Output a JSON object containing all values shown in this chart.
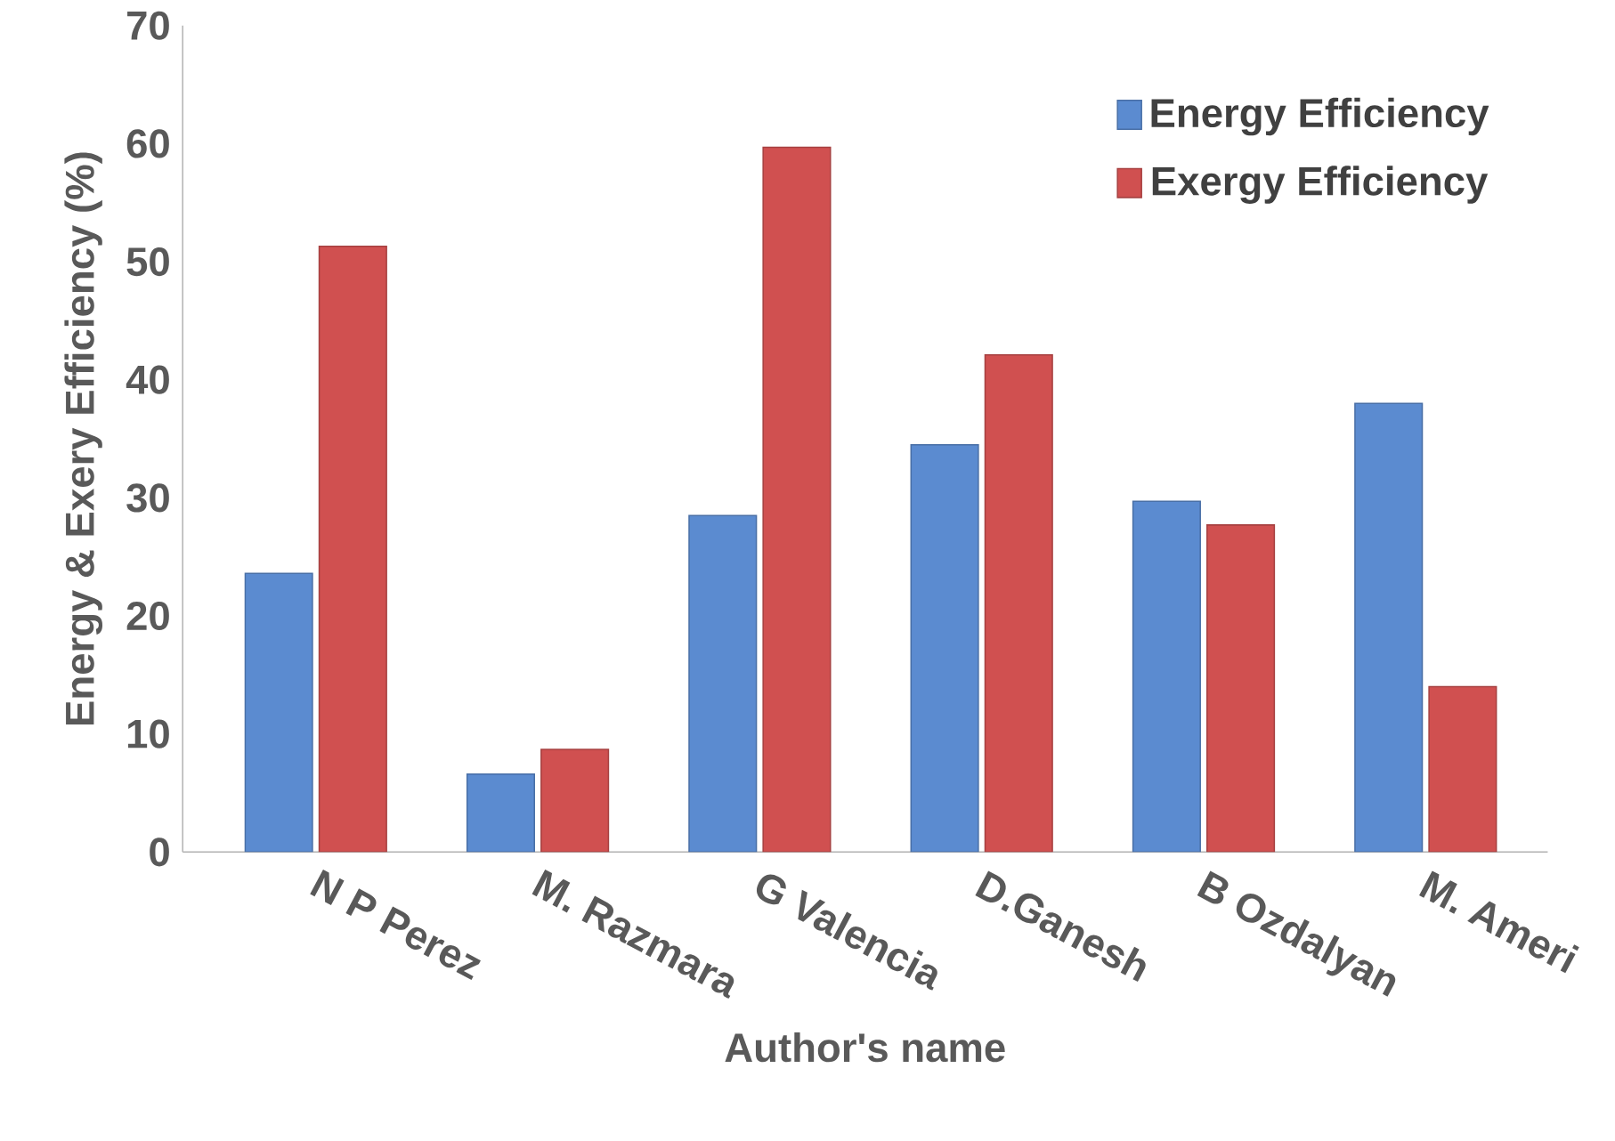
{
  "chart_data": {
    "type": "bar",
    "xlabel": "Author's name",
    "ylabel": "Energy & Exery Efficiency (%)",
    "categories": [
      "N P Perez",
      "M. Razmara",
      "G Valencia",
      "D.Ganesh",
      "B Ozdalyan",
      "M. Ameri"
    ],
    "series": [
      {
        "name": "Energy Efficiency",
        "color": "#5b8bd0",
        "values": [
          23.6,
          6.6,
          28.5,
          34.5,
          29.7,
          38.0
        ]
      },
      {
        "name": "Exergy Efficiency",
        "color": "#d05050",
        "values": [
          51.3,
          8.7,
          59.7,
          42.1,
          27.7,
          14.0
        ]
      }
    ],
    "ylim": [
      0,
      70
    ],
    "yticks": [
      0,
      10,
      20,
      30,
      40,
      50,
      60,
      70
    ],
    "grid": false,
    "legend": "top right"
  }
}
